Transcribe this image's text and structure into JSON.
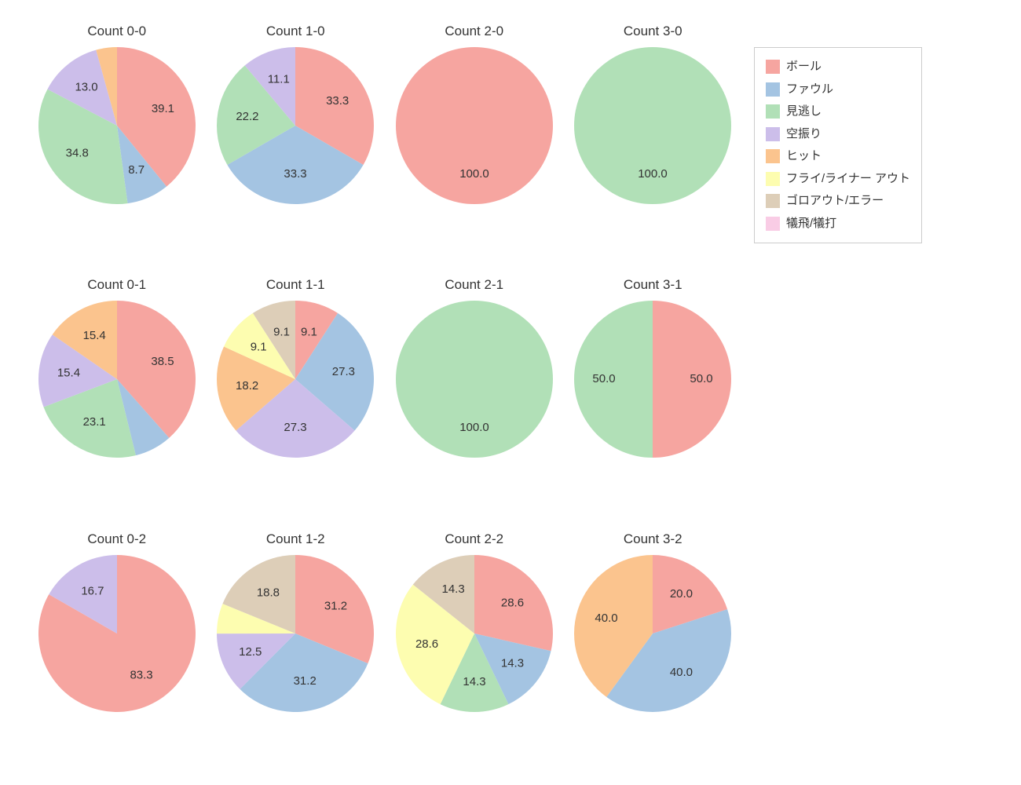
{
  "chart": {
    "type": "pie-grid",
    "rows": 3,
    "cols": 4,
    "background_color": "#ffffff",
    "title_fontsize": 17,
    "label_fontsize": 15,
    "pie_radius": 100,
    "start_angle_deg": 90,
    "direction": "clockwise",
    "categories": [
      {
        "key": "ball",
        "label": "ボール",
        "color": "#f6a5a0"
      },
      {
        "key": "foul",
        "label": "ファウル",
        "color": "#a4c4e2"
      },
      {
        "key": "looking",
        "label": "見逃し",
        "color": "#b1e0b7"
      },
      {
        "key": "swing",
        "label": "空振り",
        "color": "#ccbeea"
      },
      {
        "key": "hit",
        "label": "ヒット",
        "color": "#fbc48e"
      },
      {
        "key": "flyliner",
        "label": "フライ/ライナー アウト",
        "color": "#fdfdb0"
      },
      {
        "key": "ground",
        "label": "ゴロアウト/エラー",
        "color": "#ddceb8"
      },
      {
        "key": "sac",
        "label": "犠飛/犠打",
        "color": "#f9cce5"
      }
    ],
    "panels": [
      {
        "title": "Count 0-0",
        "slices": [
          {
            "key": "ball",
            "value": 39.1,
            "label": "39.1"
          },
          {
            "key": "foul",
            "value": 8.7,
            "label": "8.7"
          },
          {
            "key": "looking",
            "value": 34.8,
            "label": "34.8"
          },
          {
            "key": "swing",
            "value": 13.0,
            "label": "13.0"
          },
          {
            "key": "hit",
            "value": 4.3,
            "label": ""
          }
        ]
      },
      {
        "title": "Count 1-0",
        "slices": [
          {
            "key": "ball",
            "value": 33.3,
            "label": "33.3"
          },
          {
            "key": "foul",
            "value": 33.3,
            "label": "33.3"
          },
          {
            "key": "looking",
            "value": 22.2,
            "label": "22.2"
          },
          {
            "key": "swing",
            "value": 11.1,
            "label": "11.1"
          }
        ]
      },
      {
        "title": "Count 2-0",
        "slices": [
          {
            "key": "ball",
            "value": 100.0,
            "label": "100.0"
          }
        ]
      },
      {
        "title": "Count 3-0",
        "slices": [
          {
            "key": "looking",
            "value": 100.0,
            "label": "100.0"
          }
        ]
      },
      {
        "title": "Count 0-1",
        "slices": [
          {
            "key": "ball",
            "value": 38.5,
            "label": "38.5"
          },
          {
            "key": "foul",
            "value": 7.7,
            "label": ""
          },
          {
            "key": "looking",
            "value": 23.1,
            "label": "23.1"
          },
          {
            "key": "swing",
            "value": 15.4,
            "label": "15.4"
          },
          {
            "key": "hit",
            "value": 15.4,
            "label": "15.4"
          }
        ]
      },
      {
        "title": "Count 1-1",
        "slices": [
          {
            "key": "ball",
            "value": 9.1,
            "label": "9.1"
          },
          {
            "key": "foul",
            "value": 27.3,
            "label": "27.3"
          },
          {
            "key": "swing",
            "value": 27.3,
            "label": "27.3"
          },
          {
            "key": "hit",
            "value": 18.2,
            "label": "18.2"
          },
          {
            "key": "flyliner",
            "value": 9.1,
            "label": "9.1"
          },
          {
            "key": "ground",
            "value": 9.1,
            "label": "9.1"
          }
        ]
      },
      {
        "title": "Count 2-1",
        "slices": [
          {
            "key": "looking",
            "value": 100.0,
            "label": "100.0"
          }
        ]
      },
      {
        "title": "Count 3-1",
        "slices": [
          {
            "key": "ball",
            "value": 50.0,
            "label": "50.0"
          },
          {
            "key": "looking",
            "value": 50.0,
            "label": "50.0"
          }
        ]
      },
      {
        "title": "Count 0-2",
        "slices": [
          {
            "key": "ball",
            "value": 83.3,
            "label": "83.3"
          },
          {
            "key": "swing",
            "value": 16.7,
            "label": "16.7"
          }
        ]
      },
      {
        "title": "Count 1-2",
        "slices": [
          {
            "key": "ball",
            "value": 31.2,
            "label": "31.2"
          },
          {
            "key": "foul",
            "value": 31.2,
            "label": "31.2"
          },
          {
            "key": "swing",
            "value": 12.5,
            "label": "12.5"
          },
          {
            "key": "flyliner",
            "value": 6.2,
            "label": ""
          },
          {
            "key": "ground",
            "value": 18.8,
            "label": "18.8"
          }
        ]
      },
      {
        "title": "Count 2-2",
        "slices": [
          {
            "key": "ball",
            "value": 28.6,
            "label": "28.6"
          },
          {
            "key": "foul",
            "value": 14.3,
            "label": "14.3"
          },
          {
            "key": "looking",
            "value": 14.3,
            "label": "14.3"
          },
          {
            "key": "flyliner",
            "value": 28.6,
            "label": "28.6"
          },
          {
            "key": "ground",
            "value": 14.3,
            "label": "14.3"
          }
        ]
      },
      {
        "title": "Count 3-2",
        "slices": [
          {
            "key": "ball",
            "value": 20.0,
            "label": "20.0"
          },
          {
            "key": "foul",
            "value": 40.0,
            "label": "40.0"
          },
          {
            "key": "hit",
            "value": 40.0,
            "label": "40.0"
          }
        ]
      }
    ]
  }
}
